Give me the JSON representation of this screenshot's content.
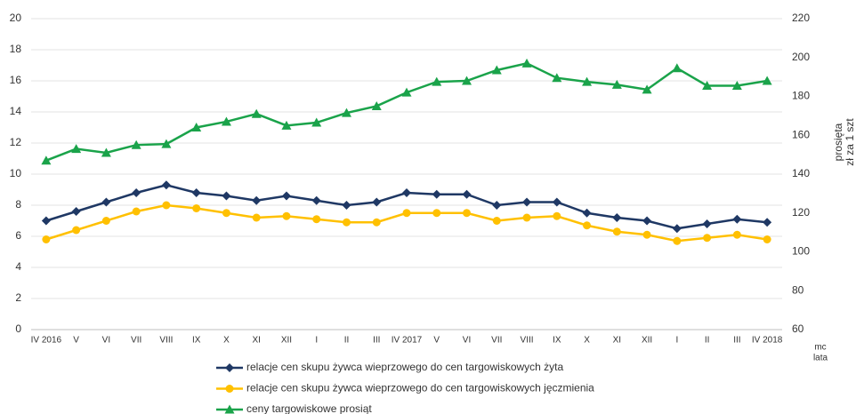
{
  "chart_data": {
    "type": "line",
    "categories": [
      "IV 2016",
      "V",
      "VI",
      "VII",
      "VIII",
      "IX",
      "X",
      "XI",
      "XII",
      "I",
      "II",
      "III",
      "IV 2017",
      "V",
      "VI",
      "VII",
      "VIII",
      "IX",
      "X",
      "XI",
      "XII",
      "I",
      "II",
      "III",
      "IV 2018"
    ],
    "series": [
      {
        "name": "relacje cen skupu żywca wieprzowego do cen targowiskowych żyta",
        "color": "#1f3864",
        "marker": "diamond",
        "values": [
          7.0,
          7.6,
          8.2,
          8.8,
          9.3,
          8.8,
          8.6,
          8.3,
          8.6,
          8.3,
          8.0,
          8.2,
          8.8,
          8.7,
          8.7,
          8.0,
          8.2,
          8.2,
          7.5,
          7.2,
          7.0,
          6.5,
          6.8,
          7.1,
          6.9
        ]
      },
      {
        "name": "relacje cen skupu żywca wieprzowego do cen targowiskowych jęczmienia",
        "color": "#ffc000",
        "marker": "circle",
        "values": [
          5.8,
          6.4,
          7.0,
          7.6,
          8.0,
          7.8,
          7.5,
          7.2,
          7.3,
          7.1,
          6.9,
          6.9,
          7.5,
          7.5,
          7.5,
          7.0,
          7.2,
          7.3,
          6.7,
          6.3,
          6.1,
          5.7,
          5.9,
          6.1,
          5.8
        ]
      },
      {
        "name": "ceny targowiskowe prosiąt",
        "color": "#1aa34a",
        "marker": "triangle",
        "axis": "y2",
        "values": [
          147,
          153,
          151,
          155,
          155.5,
          164,
          167,
          171,
          165,
          166.5,
          171.5,
          175,
          182,
          187.5,
          188,
          193.5,
          197,
          189.5,
          187.5,
          186,
          183.5,
          194.5,
          185.5,
          185.5,
          188
        ]
      }
    ],
    "ylim": [
      0,
      20
    ],
    "yticks": [
      0,
      2,
      4,
      6,
      8,
      10,
      12,
      14,
      16,
      18,
      20
    ],
    "y2lim": [
      60,
      220
    ],
    "y2ticks": [
      60,
      80,
      100,
      120,
      140,
      160,
      180,
      200,
      220
    ],
    "y2label": [
      "prosięta",
      "zł za 1 szt"
    ],
    "xlabel": [
      "mc",
      "lata"
    ],
    "grid": true
  }
}
